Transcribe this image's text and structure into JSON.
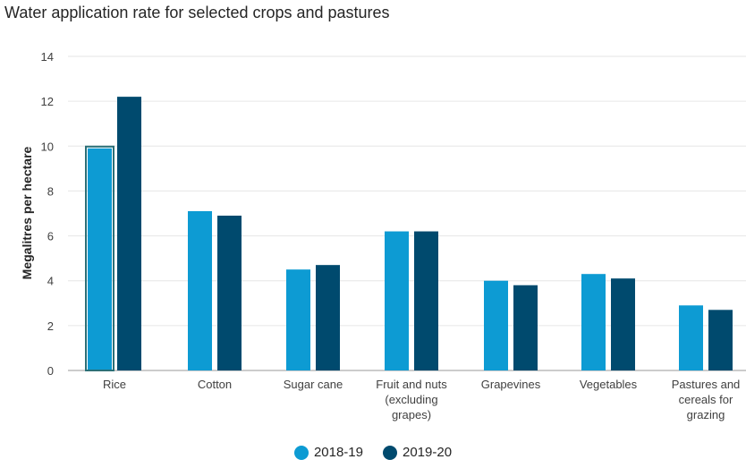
{
  "colors": {
    "series_2018_19": "#0d9bd3",
    "series_2019_20": "#004a6e",
    "grid": "#e6e6e6",
    "axis": "#9a9a9a"
  },
  "chart_data": {
    "type": "bar",
    "title": "Water application rate for selected crops and pastures",
    "xlabel": "",
    "ylabel": "Megalitres per hectare",
    "ylim": [
      0,
      14
    ],
    "yticks": [
      0,
      2,
      4,
      6,
      8,
      10,
      12,
      14
    ],
    "grid": true,
    "legend_position": "bottom-center",
    "categories": [
      [
        "Rice"
      ],
      [
        "Cotton"
      ],
      [
        "Sugar cane"
      ],
      [
        "Fruit and nuts",
        "(excluding",
        "grapes)"
      ],
      [
        "Grapevines"
      ],
      [
        "Vegetables"
      ],
      [
        "Pastures and",
        "cereals for",
        "grazing"
      ]
    ],
    "series": [
      {
        "name": "2018-19",
        "values": [
          9.9,
          7.1,
          4.5,
          6.2,
          4.0,
          4.3,
          2.9
        ]
      },
      {
        "name": "2019-20",
        "values": [
          12.2,
          6.9,
          4.7,
          6.2,
          3.8,
          4.1,
          2.7
        ]
      }
    ]
  }
}
